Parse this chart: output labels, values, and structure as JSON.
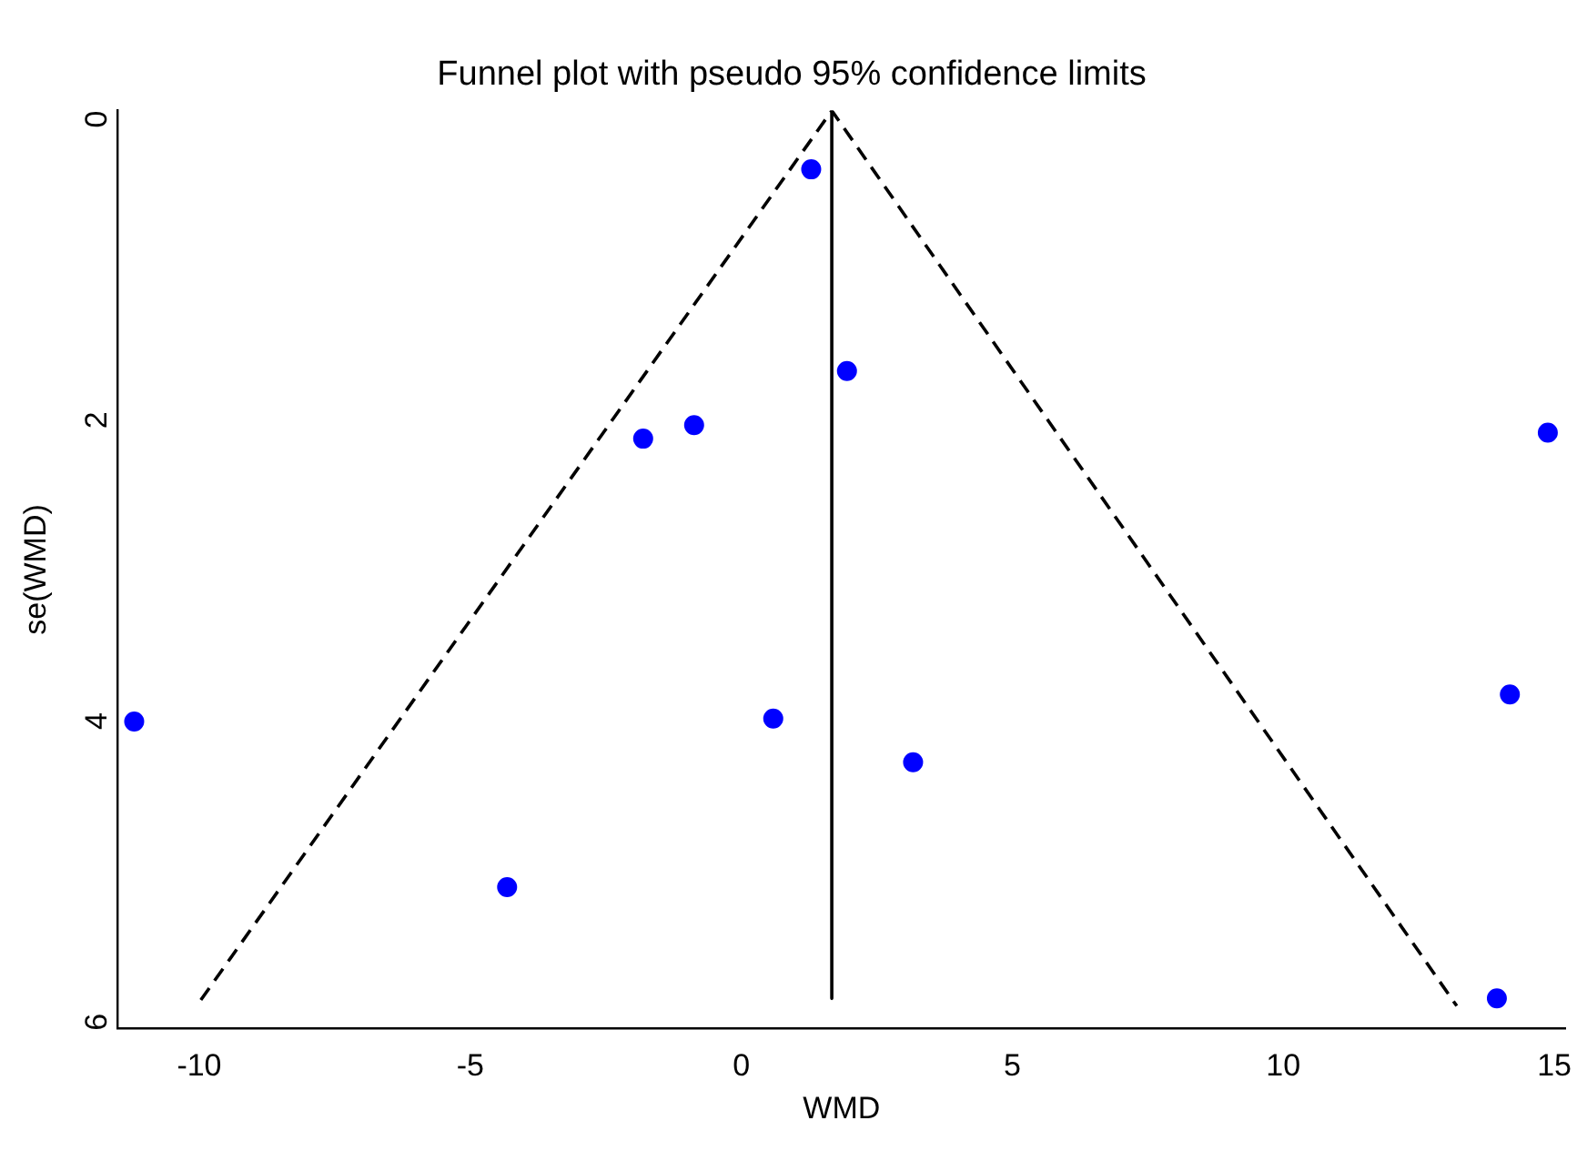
{
  "chart_data": {
    "type": "scatter",
    "title": "Funnel plot with pseudo 95% confidence limits",
    "xlabel": "WMD",
    "ylabel": "se(WMD)",
    "xlim": [
      -11.5,
      15.2
    ],
    "xticks": [
      -10,
      -5,
      0,
      5,
      10,
      15
    ],
    "ylim": [
      6.1,
      0
    ],
    "yticks": [
      0,
      2,
      4,
      6
    ],
    "grid": false,
    "legend": false,
    "series": [
      {
        "color": "#0000ff",
        "marker": "circle",
        "x": [
          1.29,
          1.95,
          -1.81,
          -0.87,
          14.88,
          -11.2,
          0.59,
          3.17,
          14.18,
          -4.32,
          13.94
        ],
        "values": [
          0.39,
          1.73,
          2.18,
          2.09,
          2.14,
          4.06,
          4.04,
          4.33,
          3.88,
          5.16,
          5.9
        ]
      },
      {
        "type": "line",
        "color": "#000000",
        "marker": "none",
        "line_style": "dashed",
        "x": [
          -9.97,
          1.67,
          13.2
        ],
        "values": [
          5.91,
          0,
          5.95
        ]
      },
      {
        "type": "line",
        "color": "#000000",
        "marker": "none",
        "line_style": "solid",
        "x": [
          1.67,
          1.67
        ],
        "values": [
          0,
          5.9
        ]
      }
    ]
  }
}
